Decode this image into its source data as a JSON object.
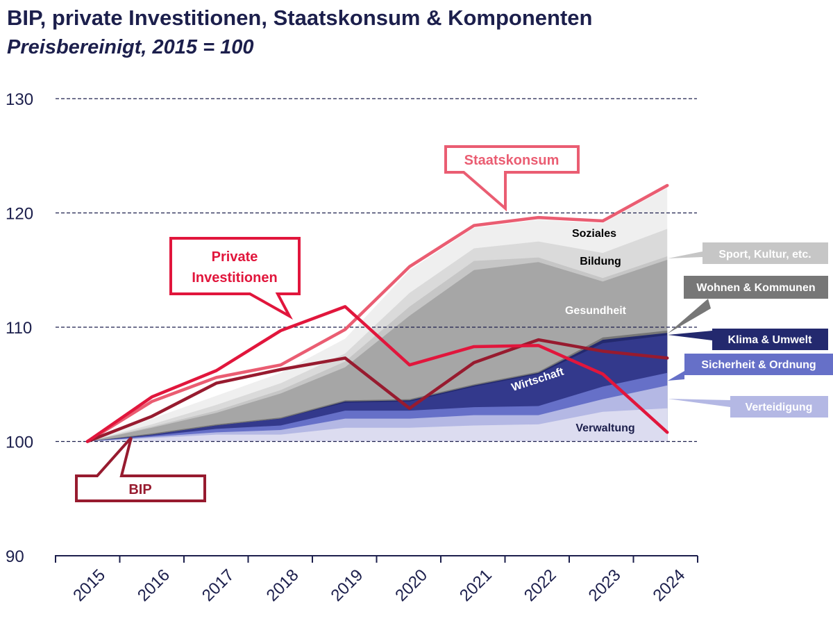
{
  "title": "BIP, private Investitionen, Staatskonsum & Komponenten",
  "subtitle": "Preisbereinigt, 2015 = 100",
  "chart_data": {
    "type": "area",
    "categories": [
      "2015",
      "2016",
      "2017",
      "2018",
      "2019",
      "2020",
      "2021",
      "2022",
      "2023",
      "2024"
    ],
    "ylim": [
      90,
      130
    ],
    "yticks": [
      90,
      100,
      110,
      120,
      130
    ],
    "grid": true,
    "stack_cumulative": [
      {
        "name": "Verwaltung",
        "color": "#dcdcf0",
        "top": [
          100,
          100.3,
          100.6,
          100.6,
          101.2,
          101.2,
          101.4,
          101.5,
          102.6,
          102.9
        ]
      },
      {
        "name": "Verteidigung",
        "color": "#b4b8e4",
        "top": [
          100,
          100.4,
          100.8,
          101.0,
          102.0,
          102.0,
          102.3,
          102.3,
          103.7,
          104.9
        ]
      },
      {
        "name": "Sicherheit & Ordnung",
        "color": "#6670c8",
        "top": [
          100,
          100.5,
          101.1,
          101.4,
          102.7,
          102.7,
          103.0,
          103.1,
          104.8,
          106.0
        ]
      },
      {
        "name": "Wirtschaft",
        "color": "#33398c",
        "top": [
          100,
          100.6,
          101.4,
          102.0,
          103.4,
          103.5,
          104.8,
          105.9,
          108.6,
          109.3
        ]
      },
      {
        "name": "Klima & Umwelt",
        "color": "#23296e",
        "top": [
          100,
          100.6,
          101.4,
          102.0,
          103.5,
          103.6,
          104.9,
          106.0,
          108.9,
          109.5
        ]
      },
      {
        "name": "Wohnen & Kommunen",
        "color": "#777777",
        "top": [
          100,
          100.7,
          101.5,
          102.1,
          103.6,
          103.7,
          105.0,
          106.1,
          109.1,
          109.7
        ]
      },
      {
        "name": "Gesundheit",
        "color": "#a6a6a6",
        "top": [
          100,
          101.2,
          102.5,
          104.2,
          106.5,
          111.0,
          115.0,
          115.7,
          114.0,
          115.9
        ]
      },
      {
        "name": "Sport, Kultur, etc.",
        "color": "#c6c6c6",
        "top": [
          100,
          101.3,
          102.7,
          104.5,
          107.0,
          111.8,
          115.8,
          116.1,
          114.3,
          116.2
        ]
      },
      {
        "name": "Bildung",
        "color": "#dadada",
        "top": [
          100,
          101.5,
          103.2,
          105.1,
          107.7,
          113.0,
          116.9,
          117.5,
          116.5,
          118.6
        ]
      },
      {
        "name": "Soziales",
        "color": "#efefef",
        "top": [
          100,
          102.0,
          104.0,
          106.0,
          109.0,
          115.0,
          118.7,
          119.4,
          119.1,
          122.2
        ]
      }
    ],
    "series": [
      {
        "name": "Staatskonsum",
        "color": "#ea5d72",
        "values": [
          100,
          103.5,
          105.6,
          106.7,
          109.8,
          115.3,
          118.9,
          119.6,
          119.3,
          122.4
        ]
      },
      {
        "name": "Private Investitionen",
        "color": "#e1163c",
        "values": [
          100,
          103.9,
          106.2,
          109.7,
          111.8,
          106.7,
          108.3,
          108.4,
          105.9,
          100.8
        ]
      },
      {
        "name": "BIP",
        "color": "#971b2f",
        "values": [
          100,
          102.2,
          105.1,
          106.3,
          107.3,
          102.9,
          106.9,
          108.9,
          107.9,
          107.3
        ]
      }
    ],
    "area_labels": [
      "Soziales",
      "Bildung",
      "Gesundheit",
      "Wirtschaft",
      "Verwaltung"
    ],
    "legend_tags": [
      "Sport, Kultur, etc.",
      "Wohnen & Kommunen",
      "Klima & Umwelt",
      "Sicherheit & Ordnung",
      "Verteidigung"
    ],
    "callouts": [
      "Staatskonsum",
      "Private",
      "Investitionen",
      "BIP"
    ]
  }
}
